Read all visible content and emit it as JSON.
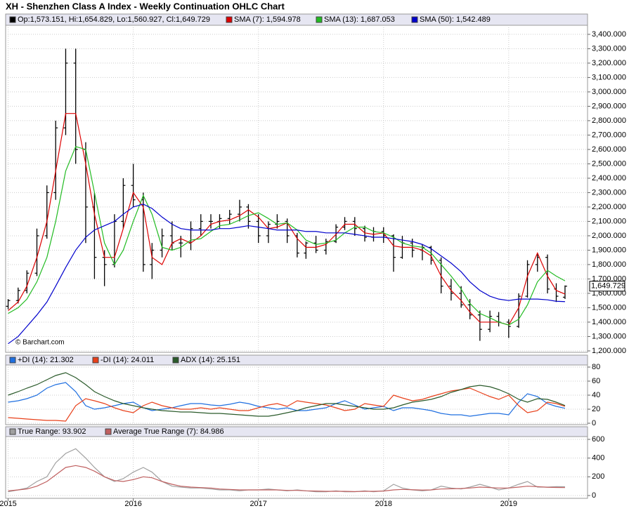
{
  "title": "XH - Shenzhen Class A Index - Weekly Continuation OHLC Chart",
  "chart_data": [
    {
      "type": "ohlc",
      "ohlc_label": "Op:1,573.151, Hi:1,654.829, Lo:1,560.927, Cl:1,649.729",
      "note": "© Barchart.com",
      "last_label": "1,649.729",
      "xlim": [
        2014.98,
        2019.63
      ],
      "xticks": [
        2015,
        2016,
        2017,
        2018,
        2019
      ],
      "ylim": [
        1190,
        3463
      ],
      "yticks": [
        {
          "value": 1200,
          "label": "1,200.000"
        },
        {
          "value": 1300,
          "label": "1,300.000"
        },
        {
          "value": 1400,
          "label": "1,400.000"
        },
        {
          "value": 1500,
          "label": "1,500.000"
        },
        {
          "value": 1600,
          "label": "1,600.000"
        },
        {
          "value": 1700,
          "label": "1,700.000"
        },
        {
          "value": 1800,
          "label": "1,800.000"
        },
        {
          "value": 1900,
          "label": "1,900.000"
        },
        {
          "value": 2000,
          "label": "2,000.000"
        },
        {
          "value": 2100,
          "label": "2,100.000"
        },
        {
          "value": 2200,
          "label": "2,200.000"
        },
        {
          "value": 2300,
          "label": "2,300.000"
        },
        {
          "value": 2400,
          "label": "2,400.000"
        },
        {
          "value": 2500,
          "label": "2,500.000"
        },
        {
          "value": 2600,
          "label": "2,600.000"
        },
        {
          "value": 2700,
          "label": "2,700.000"
        },
        {
          "value": 2800,
          "label": "2,800.000"
        },
        {
          "value": 2900,
          "label": "2,900.000"
        },
        {
          "value": 3000,
          "label": "3,000.000"
        },
        {
          "value": 3100,
          "label": "3,100.000"
        },
        {
          "value": 3200,
          "label": "3,200.000"
        },
        {
          "value": 3300,
          "label": "3,300.000"
        },
        {
          "value": 3400,
          "label": "3,400.000"
        }
      ],
      "grid": true,
      "color": "#000000",
      "x": [
        2015.0,
        2015.08,
        2015.15,
        2015.23,
        2015.31,
        2015.38,
        2015.46,
        2015.54,
        2015.62,
        2015.69,
        2015.77,
        2015.85,
        2015.92,
        2016.0,
        2016.08,
        2016.15,
        2016.23,
        2016.31,
        2016.38,
        2016.46,
        2016.54,
        2016.62,
        2016.69,
        2016.77,
        2016.85,
        2016.92,
        2017.0,
        2017.08,
        2017.15,
        2017.23,
        2017.31,
        2017.38,
        2017.46,
        2017.54,
        2017.62,
        2017.69,
        2017.77,
        2017.85,
        2017.92,
        2018.0,
        2018.08,
        2018.15,
        2018.23,
        2018.31,
        2018.38,
        2018.46,
        2018.54,
        2018.62,
        2018.69,
        2018.77,
        2018.85,
        2018.92,
        2019.0,
        2019.08,
        2019.15,
        2019.23,
        2019.31,
        2019.38,
        2019.45
      ],
      "open": [
        1510,
        1550,
        1620,
        1740,
        2000,
        2300,
        2750,
        3200,
        2600,
        2200,
        1850,
        1800,
        2100,
        2350,
        2250,
        1800,
        1900,
        2000,
        1950,
        1950,
        2050,
        2100,
        2100,
        2120,
        2150,
        2200,
        2100,
        2000,
        2080,
        2100,
        2000,
        1880,
        1950,
        1900,
        1960,
        2060,
        2100,
        2050,
        1990,
        2030,
        2000,
        1850,
        1950,
        1900,
        1920,
        1830,
        1650,
        1600,
        1520,
        1450,
        1350,
        1440,
        1400,
        1370,
        1580,
        1800,
        1850,
        1630,
        1573.151
      ],
      "high": [
        1560,
        1640,
        1760,
        2050,
        2350,
        2800,
        3300,
        3300,
        2650,
        2300,
        1900,
        2150,
        2400,
        2500,
        2300,
        1950,
        2050,
        2100,
        2000,
        2100,
        2150,
        2150,
        2150,
        2180,
        2250,
        2220,
        2150,
        2100,
        2150,
        2120,
        2020,
        1960,
        2000,
        1980,
        2080,
        2130,
        2130,
        2070,
        2060,
        2060,
        2010,
        2000,
        1980,
        1940,
        1930,
        1850,
        1700,
        1650,
        1560,
        1480,
        1480,
        1470,
        1420,
        1600,
        1830,
        1880,
        1870,
        1670,
        1654.829
      ],
      "low": [
        1490,
        1530,
        1600,
        1720,
        1980,
        2250,
        2700,
        2500,
        1950,
        1700,
        1650,
        1780,
        2050,
        2200,
        1750,
        1700,
        1850,
        1900,
        1850,
        1900,
        2000,
        2050,
        2050,
        2080,
        2100,
        2050,
        1950,
        1950,
        2050,
        1950,
        1850,
        1840,
        1880,
        1870,
        1950,
        2040,
        2000,
        1960,
        1960,
        1950,
        1750,
        1840,
        1850,
        1830,
        1800,
        1600,
        1550,
        1500,
        1420,
        1270,
        1330,
        1370,
        1290,
        1360,
        1570,
        1750,
        1600,
        1540,
        1560.927
      ],
      "close": [
        1550,
        1620,
        1740,
        2000,
        2300,
        2750,
        3200,
        2600,
        2200,
        1850,
        1800,
        2100,
        2350,
        2250,
        1800,
        1900,
        2000,
        1950,
        1950,
        2050,
        2100,
        2100,
        2120,
        2150,
        2200,
        2100,
        2000,
        2080,
        2100,
        2000,
        1880,
        1950,
        1900,
        1960,
        2060,
        2100,
        2050,
        1990,
        2030,
        2000,
        1850,
        1950,
        1900,
        1920,
        1830,
        1650,
        1600,
        1520,
        1450,
        1350,
        1440,
        1400,
        1370,
        1580,
        1800,
        1850,
        1630,
        1580,
        1649.729
      ],
      "series": [
        {
          "name": "SMA (7): 1,594.978",
          "color": "#dd0000",
          "values": [
            1480,
            1540,
            1650,
            1850,
            2100,
            2450,
            2850,
            2850,
            2500,
            2150,
            1850,
            1850,
            2050,
            2300,
            2200,
            1850,
            1800,
            1950,
            1980,
            1950,
            2000,
            2080,
            2100,
            2110,
            2140,
            2180,
            2130,
            2050,
            2060,
            2090,
            1980,
            1920,
            1920,
            1940,
            2010,
            2080,
            2080,
            2020,
            2010,
            2020,
            1930,
            1920,
            1920,
            1900,
            1860,
            1720,
            1620,
            1550,
            1470,
            1400,
            1400,
            1400,
            1380,
            1500,
            1720,
            1880,
            1720,
            1620,
            1594.978
          ]
        },
        {
          "name": "SMA (13): 1,687.053",
          "color": "#22bb22",
          "values": [
            1460,
            1500,
            1560,
            1680,
            1850,
            2100,
            2450,
            2620,
            2600,
            2300,
            1950,
            1800,
            1900,
            2100,
            2280,
            2150,
            1920,
            1900,
            1920,
            1970,
            1980,
            2030,
            2070,
            2080,
            2110,
            2140,
            2160,
            2120,
            2080,
            2090,
            2040,
            1970,
            1940,
            1950,
            1970,
            2020,
            2060,
            2060,
            2030,
            2020,
            1990,
            1950,
            1930,
            1920,
            1880,
            1800,
            1720,
            1630,
            1530,
            1460,
            1430,
            1400,
            1380,
            1420,
            1520,
            1680,
            1760,
            1720,
            1687.053
          ]
        },
        {
          "name": "SMA (50): 1,542.489",
          "color": "#0000cc",
          "values": [
            1250,
            1300,
            1370,
            1450,
            1540,
            1650,
            1780,
            1900,
            1990,
            2040,
            2070,
            2100,
            2150,
            2200,
            2220,
            2190,
            2130,
            2080,
            2050,
            2040,
            2040,
            2040,
            2050,
            2050,
            2060,
            2070,
            2060,
            2050,
            2040,
            2040,
            2040,
            2030,
            2030,
            2020,
            2020,
            2020,
            2010,
            2000,
            1990,
            1990,
            1980,
            1970,
            1960,
            1940,
            1910,
            1860,
            1810,
            1750,
            1680,
            1620,
            1580,
            1560,
            1550,
            1560,
            1560,
            1560,
            1555,
            1545,
            1542.489
          ]
        }
      ]
    },
    {
      "type": "line",
      "xlim": [
        2014.98,
        2019.63
      ],
      "xticks": [
        2015,
        2016,
        2017,
        2018,
        2019
      ],
      "ylim": [
        -2,
        83
      ],
      "yticks": [
        0,
        20,
        40,
        60,
        80
      ],
      "grid": true,
      "x": [
        2015.0,
        2015.08,
        2015.15,
        2015.23,
        2015.31,
        2015.38,
        2015.46,
        2015.54,
        2015.62,
        2015.69,
        2015.77,
        2015.85,
        2015.92,
        2016.0,
        2016.08,
        2016.15,
        2016.23,
        2016.31,
        2016.38,
        2016.46,
        2016.54,
        2016.62,
        2016.69,
        2016.77,
        2016.85,
        2016.92,
        2017.0,
        2017.08,
        2017.15,
        2017.23,
        2017.31,
        2017.38,
        2017.46,
        2017.54,
        2017.62,
        2017.69,
        2017.77,
        2017.85,
        2017.92,
        2018.0,
        2018.08,
        2018.15,
        2018.23,
        2018.31,
        2018.38,
        2018.46,
        2018.54,
        2018.62,
        2018.69,
        2018.77,
        2018.85,
        2018.92,
        2019.0,
        2019.08,
        2019.15,
        2019.23,
        2019.31,
        2019.38,
        2019.45
      ],
      "series": [
        {
          "name": "+DI (14): 21.302",
          "color": "#1f6fe0",
          "values": [
            30,
            32,
            35,
            40,
            50,
            55,
            58,
            45,
            25,
            20,
            22,
            25,
            28,
            30,
            22,
            18,
            20,
            22,
            25,
            28,
            28,
            26,
            25,
            27,
            30,
            28,
            24,
            22,
            20,
            22,
            18,
            18,
            20,
            22,
            28,
            32,
            26,
            20,
            22,
            24,
            18,
            22,
            22,
            20,
            18,
            14,
            12,
            12,
            10,
            12,
            14,
            14,
            12,
            30,
            42,
            38,
            28,
            24,
            21.302
          ]
        },
        {
          "name": "-DI (14): 24.011",
          "color": "#e8401a",
          "values": [
            8,
            7,
            6,
            5,
            4,
            4,
            3,
            25,
            35,
            32,
            28,
            22,
            18,
            15,
            25,
            30,
            25,
            22,
            20,
            20,
            22,
            20,
            22,
            20,
            18,
            18,
            22,
            26,
            28,
            24,
            32,
            30,
            28,
            26,
            22,
            18,
            20,
            28,
            26,
            24,
            40,
            36,
            32,
            34,
            38,
            42,
            46,
            48,
            50,
            44,
            38,
            34,
            40,
            25,
            15,
            18,
            30,
            28,
            24.011
          ]
        },
        {
          "name": "ADX (14): 25.151",
          "color": "#2a5a2a",
          "values": [
            40,
            45,
            50,
            55,
            62,
            68,
            72,
            65,
            55,
            45,
            38,
            32,
            28,
            25,
            22,
            20,
            18,
            17,
            16,
            16,
            15,
            14,
            14,
            13,
            12,
            11,
            10,
            10,
            12,
            15,
            18,
            22,
            25,
            28,
            28,
            26,
            24,
            22,
            20,
            20,
            22,
            26,
            30,
            32,
            34,
            38,
            44,
            48,
            52,
            54,
            52,
            48,
            42,
            34,
            30,
            35,
            34,
            30,
            25.151
          ]
        }
      ]
    },
    {
      "type": "line",
      "xlim": [
        2014.98,
        2019.63
      ],
      "xticks": [
        2015,
        2016,
        2017,
        2018,
        2019
      ],
      "ylim": [
        -30,
        630
      ],
      "yticks": [
        0,
        200,
        400,
        600
      ],
      "grid": true,
      "x": [
        2015.0,
        2015.08,
        2015.15,
        2015.23,
        2015.31,
        2015.38,
        2015.46,
        2015.54,
        2015.62,
        2015.69,
        2015.77,
        2015.85,
        2015.92,
        2016.0,
        2016.08,
        2016.15,
        2016.23,
        2016.31,
        2016.38,
        2016.46,
        2016.54,
        2016.62,
        2016.69,
        2016.77,
        2016.85,
        2016.92,
        2017.0,
        2017.08,
        2017.15,
        2017.23,
        2017.31,
        2017.38,
        2017.46,
        2017.54,
        2017.62,
        2017.69,
        2017.77,
        2017.85,
        2017.92,
        2018.0,
        2018.08,
        2018.15,
        2018.23,
        2018.31,
        2018.38,
        2018.46,
        2018.54,
        2018.62,
        2018.69,
        2018.77,
        2018.85,
        2018.92,
        2019.0,
        2019.08,
        2019.15,
        2019.23,
        2019.31,
        2019.38,
        2019.45
      ],
      "series": [
        {
          "name": "True Range: 93.902",
          "color": "#a0a0a0",
          "values": [
            40,
            60,
            80,
            150,
            200,
            350,
            450,
            500,
            400,
            300,
            200,
            150,
            180,
            250,
            300,
            250,
            150,
            100,
            90,
            80,
            80,
            70,
            60,
            60,
            50,
            60,
            60,
            70,
            60,
            50,
            60,
            50,
            40,
            40,
            50,
            40,
            40,
            50,
            40,
            50,
            120,
            80,
            60,
            50,
            60,
            100,
            80,
            70,
            90,
            120,
            90,
            60,
            80,
            120,
            150,
            90,
            90,
            95,
            93.902
          ]
        },
        {
          "name": "Average True Range (7): 84.986",
          "color": "#c06060",
          "values": [
            50,
            60,
            70,
            100,
            150,
            220,
            300,
            320,
            300,
            260,
            200,
            160,
            150,
            170,
            200,
            190,
            150,
            120,
            100,
            90,
            85,
            80,
            70,
            65,
            60,
            60,
            60,
            60,
            60,
            55,
            55,
            50,
            48,
            45,
            45,
            45,
            42,
            45,
            45,
            48,
            60,
            65,
            62,
            58,
            60,
            70,
            72,
            75,
            80,
            90,
            85,
            80,
            80,
            90,
            100,
            95,
            88,
            86,
            84.986
          ]
        }
      ]
    }
  ]
}
